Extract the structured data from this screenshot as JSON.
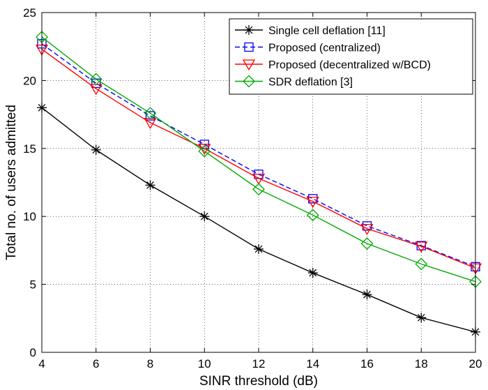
{
  "chart_data": {
    "type": "line",
    "title": "",
    "xlabel": "SINR threshold (dB)",
    "ylabel": "Total no. of users admitted",
    "xlim": [
      4,
      20
    ],
    "ylim": [
      0,
      25
    ],
    "x_ticks": [
      4,
      6,
      8,
      10,
      12,
      14,
      16,
      18,
      20
    ],
    "y_ticks": [
      0,
      5,
      10,
      15,
      20,
      25
    ],
    "grid": true,
    "legend_position": "top-right",
    "x": [
      4,
      6,
      8,
      10,
      12,
      14,
      16,
      18,
      20
    ],
    "series": [
      {
        "name": "Single cell deflation [11]",
        "color": "#000000",
        "marker": "asterisk",
        "dash": "solid",
        "values": [
          18.0,
          14.9,
          12.3,
          10.0,
          7.6,
          5.85,
          4.25,
          2.55,
          1.5
        ]
      },
      {
        "name": "Proposed (centralized)",
        "color": "#0000ff",
        "marker": "square",
        "dash": "dashed",
        "values": [
          22.7,
          19.8,
          17.4,
          15.3,
          13.1,
          11.3,
          9.3,
          7.85,
          6.3
        ]
      },
      {
        "name": "Proposed (decentralized w/BCD)",
        "color": "#ff0000",
        "marker": "triangle-down",
        "dash": "solid",
        "values": [
          22.3,
          19.4,
          16.9,
          15.0,
          12.8,
          11.1,
          9.1,
          7.8,
          6.2
        ]
      },
      {
        "name": "SDR deflation [3]",
        "color": "#00aa00",
        "marker": "diamond",
        "dash": "solid",
        "values": [
          23.2,
          20.1,
          17.6,
          14.8,
          12.0,
          10.1,
          8.0,
          6.5,
          5.2
        ]
      }
    ]
  }
}
